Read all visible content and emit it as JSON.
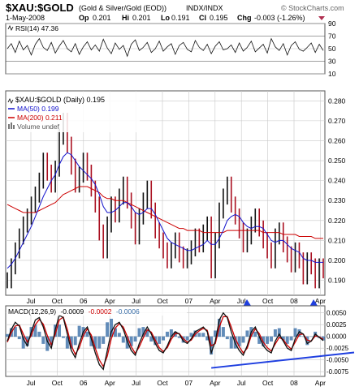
{
  "header": {
    "symbol": "$XAU:$GOLD",
    "description": "(Gold & Silver/Gold (EOD))",
    "exchange": "INDX/INDX",
    "copyright": "© StockCharts.com",
    "date": "1-May-2008",
    "op_label": "Op",
    "op": "0.201",
    "hi_label": "Hi",
    "hi": "0.201",
    "lo_label": "Lo",
    "lo": "0.191",
    "cl_label": "Cl",
    "cl": "0.195",
    "chg_label": "Chg",
    "chg": "-0.003 (-1.26%)"
  },
  "colors": {
    "price": "#111111",
    "ma50": "#1010cc",
    "ma200": "#cc0000",
    "rsi": "#111111",
    "macd": "#111111",
    "signal": "#cc0000",
    "histogram": "#3b6fa8",
    "annotation": "#1f3fe0",
    "grid": "#c8c8c8"
  },
  "chart_data": [
    {
      "panel": "rsi",
      "type": "line",
      "legend": "RSI(14) 47.36",
      "ylim": [
        10,
        90
      ],
      "y_ticks": [
        "70",
        "50",
        "30",
        "10",
        "90"
      ],
      "series": [
        {
          "name": "RSI(14)",
          "values": [
            50,
            58,
            44,
            62,
            48,
            55,
            40,
            57,
            66,
            52,
            47,
            60,
            43,
            54,
            63,
            50,
            45,
            58,
            41,
            53,
            61,
            48,
            56,
            46,
            65,
            51,
            42,
            59,
            49,
            55,
            38,
            57,
            64,
            47,
            52,
            60,
            44,
            50,
            62,
            46,
            53,
            58,
            41,
            55,
            60,
            49,
            45,
            63,
            52,
            47,
            57,
            42,
            54,
            61,
            48,
            50,
            56,
            44,
            59,
            46,
            52,
            62,
            45,
            51,
            57,
            43,
            66,
            53,
            47,
            58,
            40,
            55,
            61,
            49,
            46,
            52,
            59,
            44,
            57,
            47
          ]
        }
      ]
    },
    {
      "panel": "price",
      "type": "line",
      "legend": [
        "$XAU:$GOLD (Daily) 0.195",
        "MA(50) 0.199",
        "MA(200) 0.211",
        "Volume undef"
      ],
      "ylim": [
        0.1825,
        0.285
      ],
      "y_ticks": [
        "0.280",
        "0.270",
        "0.260",
        "0.250",
        "0.240",
        "0.230",
        "0.220",
        "0.210",
        "0.200",
        "0.190"
      ],
      "x_ticks": [
        "Jul",
        "Oct",
        "06",
        "Apr",
        "Jul",
        "Oct",
        "07",
        "Apr",
        "Jul",
        "Oct",
        "08",
        "Apr"
      ],
      "series": [
        {
          "name": "$XAU:$GOLD (Daily)",
          "values": [
            0.19,
            0.197,
            0.205,
            0.212,
            0.218,
            0.222,
            0.228,
            0.233,
            0.24,
            0.25,
            0.244,
            0.238,
            0.246,
            0.262,
            0.27,
            0.258,
            0.247,
            0.238,
            0.243,
            0.25,
            0.244,
            0.236,
            0.228,
            0.214,
            0.205,
            0.218,
            0.228,
            0.223,
            0.232,
            0.238,
            0.23,
            0.22,
            0.212,
            0.222,
            0.23,
            0.236,
            0.225,
            0.215,
            0.21,
            0.205,
            0.2,
            0.205,
            0.21,
            0.203,
            0.2,
            0.202,
            0.206,
            0.212,
            0.208,
            0.214,
            0.218,
            0.195,
            0.21,
            0.225,
            0.232,
            0.238,
            0.228,
            0.222,
            0.215,
            0.208,
            0.212,
            0.218,
            0.222,
            0.216,
            0.21,
            0.205,
            0.2,
            0.212,
            0.215,
            0.208,
            0.203,
            0.198,
            0.205,
            0.2,
            0.192,
            0.2,
            0.197,
            0.19,
            0.197,
            0.195
          ]
        },
        {
          "name": "MA(50)",
          "values": [
            0.196,
            0.198,
            0.201,
            0.205,
            0.209,
            0.213,
            0.217,
            0.222,
            0.227,
            0.232,
            0.236,
            0.24,
            0.243,
            0.248,
            0.252,
            0.254,
            0.253,
            0.25,
            0.247,
            0.245,
            0.243,
            0.241,
            0.238,
            0.233,
            0.227,
            0.224,
            0.224,
            0.225,
            0.227,
            0.229,
            0.229,
            0.227,
            0.224,
            0.223,
            0.224,
            0.226,
            0.226,
            0.223,
            0.219,
            0.215,
            0.211,
            0.209,
            0.208,
            0.207,
            0.206,
            0.205,
            0.205,
            0.206,
            0.207,
            0.208,
            0.21,
            0.208,
            0.208,
            0.211,
            0.215,
            0.22,
            0.222,
            0.223,
            0.222,
            0.219,
            0.217,
            0.216,
            0.217,
            0.217,
            0.216,
            0.213,
            0.21,
            0.209,
            0.21,
            0.21,
            0.208,
            0.206,
            0.205,
            0.204,
            0.201,
            0.2,
            0.2,
            0.199,
            0.199,
            0.199
          ]
        },
        {
          "name": "MA(200)",
          "values": [
            0.228,
            0.227,
            0.226,
            0.225,
            0.224,
            0.224,
            0.224,
            0.224,
            0.225,
            0.226,
            0.227,
            0.228,
            0.229,
            0.231,
            0.233,
            0.234,
            0.235,
            0.236,
            0.237,
            0.237,
            0.237,
            0.236,
            0.235,
            0.234,
            0.232,
            0.231,
            0.231,
            0.23,
            0.23,
            0.23,
            0.229,
            0.228,
            0.227,
            0.226,
            0.225,
            0.224,
            0.223,
            0.222,
            0.221,
            0.22,
            0.219,
            0.218,
            0.217,
            0.216,
            0.216,
            0.215,
            0.215,
            0.215,
            0.215,
            0.214,
            0.214,
            0.214,
            0.214,
            0.214,
            0.214,
            0.215,
            0.215,
            0.215,
            0.215,
            0.215,
            0.215,
            0.215,
            0.215,
            0.215,
            0.214,
            0.214,
            0.214,
            0.214,
            0.214,
            0.213,
            0.213,
            0.213,
            0.213,
            0.212,
            0.212,
            0.212,
            0.212,
            0.211,
            0.211,
            0.211
          ]
        }
      ],
      "annotations": [
        "up-arrow near Jul 07",
        "up-arrow near Apr 08"
      ]
    },
    {
      "panel": "macd",
      "type": "line",
      "legend_parts": [
        "MACD(12,26,9)",
        "-0.0009",
        "-0.0002",
        "-0.0006"
      ],
      "ylim": [
        -0.0085,
        0.0065
      ],
      "y_ticks": [
        "0.0050",
        "0.0025",
        "0.0000",
        "-0.0025",
        "-0.0050",
        "-0.0075"
      ],
      "x_ticks": [
        "Jul",
        "Oct",
        "06",
        "Apr",
        "Jul",
        "Oct",
        "07",
        "Apr",
        "Jul",
        "Oct",
        "08",
        "Apr"
      ],
      "series": [
        {
          "name": "MACD",
          "values": [
            -0.001,
            0.0015,
            0.003,
            0.0022,
            -0.0005,
            -0.002,
            0.001,
            0.0035,
            0.004,
            0.002,
            -0.001,
            -0.0025,
            0.0015,
            0.0045,
            0.004,
            0.0005,
            -0.003,
            -0.0045,
            -0.0015,
            0.001,
            0.002,
            -0.0005,
            -0.0035,
            -0.006,
            -0.007,
            -0.003,
            0.001,
            0.0025,
            0.003,
            0.0015,
            -0.001,
            -0.003,
            -0.004,
            -0.0015,
            0.0005,
            0.002,
            0.0005,
            -0.0015,
            -0.003,
            -0.0035,
            -0.002,
            0.0,
            0.001,
            0.0005,
            -0.001,
            -0.0015,
            -0.0005,
            0.001,
            0.0015,
            0.002,
            0.001,
            -0.0035,
            -0.001,
            0.0035,
            0.005,
            0.004,
            0.001,
            -0.0015,
            -0.003,
            -0.004,
            -0.002,
            0.001,
            0.002,
            0.0,
            -0.002,
            -0.003,
            -0.0035,
            -0.001,
            0.0005,
            -0.001,
            -0.0025,
            -0.003,
            -0.0005,
            0.001,
            0.0005,
            -0.0015,
            -0.001,
            0.0005,
            -0.0002,
            -0.0009
          ]
        },
        {
          "name": "Signal",
          "values": [
            -0.0012,
            0.0008,
            0.0022,
            0.0024,
            0.0005,
            -0.0012,
            0.0002,
            0.0025,
            0.0036,
            0.0026,
            0.0002,
            -0.0018,
            0.0005,
            0.0035,
            0.0041,
            0.0015,
            -0.002,
            -0.0038,
            -0.0024,
            0.0002,
            0.0016,
            0.0003,
            -0.0025,
            -0.005,
            -0.0064,
            -0.0042,
            -0.0005,
            0.0018,
            0.0027,
            0.002,
            0.0,
            -0.0022,
            -0.0036,
            -0.0022,
            -0.0003,
            0.0014,
            0.0009,
            -0.0008,
            -0.0024,
            -0.0032,
            -0.0024,
            -0.0006,
            0.0006,
            0.0006,
            -0.0005,
            -0.0012,
            -0.0008,
            0.0005,
            0.0012,
            0.0017,
            0.0013,
            -0.002,
            -0.0015,
            0.002,
            0.0042,
            0.0042,
            0.002,
            -0.0005,
            -0.0022,
            -0.0035,
            -0.0025,
            0.0002,
            0.0016,
            0.0006,
            -0.0012,
            -0.0024,
            -0.0031,
            -0.0016,
            -0.0002,
            -0.0007,
            -0.0019,
            -0.0027,
            -0.0012,
            0.0004,
            0.0005,
            -0.0008,
            -0.001,
            0.0001,
            -0.0001,
            -0.0006
          ]
        }
      ],
      "trendline": {
        "from": [
          51,
          -0.0067
        ],
        "to": [
          79,
          -0.0029
        ]
      }
    }
  ]
}
